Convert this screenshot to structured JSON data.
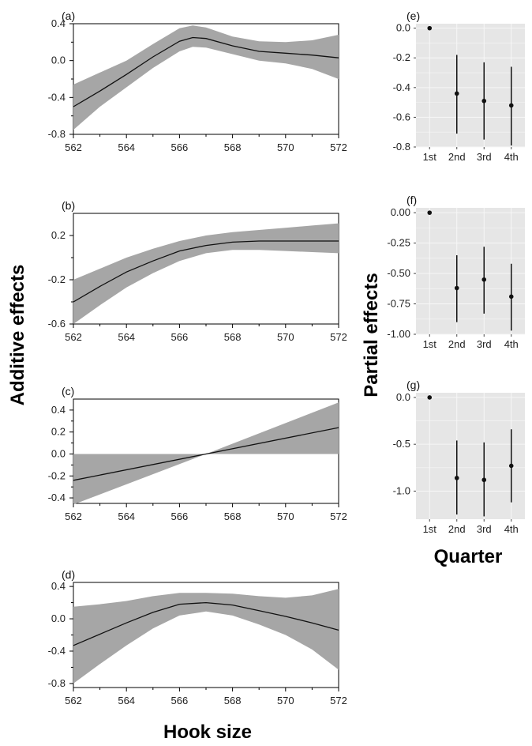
{
  "figure": {
    "left_ylabel": "Additive effects",
    "left_xlabel": "Hook size",
    "right_ylabel": "Partial effects",
    "right_xlabel": "Quarter"
  },
  "colors": {
    "band": "#a6a6a6",
    "line": "#111111",
    "panel_bg": "#e6e6e6",
    "grid": "#f7f7f7",
    "axis": "#000000"
  },
  "chart_data": [
    {
      "id": "a",
      "type": "line",
      "panel_label": "(a)",
      "xlim": [
        562,
        572
      ],
      "ylim": [
        -0.8,
        0.4
      ],
      "xticks": [
        562,
        564,
        566,
        568,
        570,
        572
      ],
      "yticks": [
        -0.8,
        -0.4,
        0.0,
        0.4
      ],
      "ytick_labels": [
        "-0.8",
        "-0.4",
        "0.0",
        "0.4"
      ],
      "series": [
        {
          "x": [
            562,
            563,
            564,
            565,
            566,
            566.5,
            567,
            568,
            569,
            570,
            571,
            572
          ],
          "y": [
            -0.5,
            -0.33,
            -0.15,
            0.04,
            0.21,
            0.25,
            0.24,
            0.16,
            0.1,
            0.08,
            0.06,
            0.03
          ],
          "lower": [
            -0.75,
            -0.5,
            -0.29,
            -0.08,
            0.1,
            0.15,
            0.14,
            0.07,
            0.0,
            -0.03,
            -0.09,
            -0.2
          ],
          "upper": [
            -0.26,
            -0.13,
            0.0,
            0.18,
            0.35,
            0.38,
            0.36,
            0.26,
            0.21,
            0.2,
            0.22,
            0.28
          ]
        }
      ]
    },
    {
      "id": "b",
      "type": "line",
      "panel_label": "(b)",
      "xlim": [
        562,
        572
      ],
      "ylim": [
        -0.6,
        0.4
      ],
      "xticks": [
        562,
        564,
        566,
        568,
        570,
        572
      ],
      "yticks": [
        -0.6,
        -0.2,
        0.2
      ],
      "ytick_labels": [
        "-0.6",
        "-0.2",
        "0.2"
      ],
      "series": [
        {
          "x": [
            562,
            563,
            564,
            565,
            566,
            567,
            568,
            569,
            570,
            571,
            572
          ],
          "y": [
            -0.4,
            -0.26,
            -0.13,
            -0.03,
            0.06,
            0.11,
            0.14,
            0.15,
            0.15,
            0.15,
            0.15
          ],
          "lower": [
            -0.6,
            -0.43,
            -0.27,
            -0.14,
            -0.03,
            0.04,
            0.07,
            0.07,
            0.06,
            0.05,
            0.04
          ],
          "upper": [
            -0.2,
            -0.1,
            0.0,
            0.08,
            0.15,
            0.2,
            0.23,
            0.25,
            0.27,
            0.29,
            0.31
          ]
        }
      ]
    },
    {
      "id": "c",
      "type": "line",
      "panel_label": "(c)",
      "xlim": [
        562,
        572
      ],
      "ylim": [
        -0.45,
        0.5
      ],
      "xticks": [
        562,
        564,
        566,
        568,
        570,
        572
      ],
      "yticks": [
        -0.4,
        -0.2,
        0.0,
        0.2,
        0.4
      ],
      "ytick_labels": [
        "-0.4",
        "-0.2",
        "0.0",
        "0.2",
        "0.4"
      ],
      "series": [
        {
          "x": [
            562,
            567,
            572
          ],
          "y": [
            -0.24,
            0.0,
            0.24
          ],
          "lower": [
            -0.46,
            0.0,
            0.0
          ],
          "upper": [
            0.0,
            0.0,
            0.47
          ]
        }
      ]
    },
    {
      "id": "d",
      "type": "line",
      "panel_label": "(d)",
      "xlim": [
        562,
        572
      ],
      "ylim": [
        -0.85,
        0.45
      ],
      "xticks": [
        562,
        564,
        566,
        568,
        570,
        572
      ],
      "yticks": [
        -0.8,
        -0.4,
        0.0,
        0.4
      ],
      "ytick_labels": [
        "-0.8",
        "-0.4",
        "0.0",
        "0.4"
      ],
      "series": [
        {
          "x": [
            562,
            563,
            564,
            565,
            566,
            567,
            568,
            569,
            570,
            571,
            572
          ],
          "y": [
            -0.33,
            -0.19,
            -0.05,
            0.08,
            0.18,
            0.2,
            0.17,
            0.1,
            0.03,
            -0.05,
            -0.14
          ],
          "lower": [
            -0.8,
            -0.56,
            -0.33,
            -0.12,
            0.04,
            0.09,
            0.04,
            -0.07,
            -0.2,
            -0.38,
            -0.63
          ],
          "upper": [
            0.15,
            0.18,
            0.22,
            0.28,
            0.32,
            0.32,
            0.31,
            0.28,
            0.26,
            0.29,
            0.37
          ]
        }
      ]
    },
    {
      "id": "e",
      "type": "scatter",
      "panel_label": "(e)",
      "categories": [
        "1st",
        "2nd",
        "3rd",
        "4th"
      ],
      "ylim": [
        -0.8,
        0.03
      ],
      "yticks": [
        0.0,
        -0.2,
        -0.4,
        -0.6,
        -0.8
      ],
      "ytick_labels": [
        "0.0",
        "-0.2",
        "-0.4",
        "-0.6",
        "-0.8"
      ],
      "points": [
        {
          "y": 0.0,
          "lower": 0.0,
          "upper": 0.0
        },
        {
          "y": -0.44,
          "lower": -0.71,
          "upper": -0.18
        },
        {
          "y": -0.49,
          "lower": -0.75,
          "upper": -0.23
        },
        {
          "y": -0.52,
          "lower": -0.79,
          "upper": -0.26
        }
      ]
    },
    {
      "id": "f",
      "type": "scatter",
      "panel_label": "(f)",
      "categories": [
        "1st",
        "2nd",
        "3rd",
        "4th"
      ],
      "ylim": [
        -1.0,
        0.04
      ],
      "yticks": [
        0.0,
        -0.25,
        -0.5,
        -0.75,
        -1.0
      ],
      "ytick_labels": [
        "0.00",
        "-0.25",
        "-0.50",
        "-0.75",
        "-1.00"
      ],
      "points": [
        {
          "y": 0.0,
          "lower": 0.0,
          "upper": 0.0
        },
        {
          "y": -0.62,
          "lower": -0.9,
          "upper": -0.35
        },
        {
          "y": -0.55,
          "lower": -0.83,
          "upper": -0.28
        },
        {
          "y": -0.69,
          "lower": -0.97,
          "upper": -0.42
        }
      ]
    },
    {
      "id": "g",
      "type": "scatter",
      "panel_label": "(g)",
      "categories": [
        "1st",
        "2nd",
        "3rd",
        "4th"
      ],
      "ylim": [
        -1.3,
        0.05
      ],
      "yticks": [
        0.0,
        -0.5,
        -1.0
      ],
      "ytick_labels": [
        "0.0",
        "-0.5",
        "-1.0"
      ],
      "points": [
        {
          "y": 0.0,
          "lower": 0.0,
          "upper": 0.0
        },
        {
          "y": -0.86,
          "lower": -1.25,
          "upper": -0.46
        },
        {
          "y": -0.88,
          "lower": -1.27,
          "upper": -0.48
        },
        {
          "y": -0.73,
          "lower": -1.12,
          "upper": -0.34
        }
      ]
    }
  ]
}
